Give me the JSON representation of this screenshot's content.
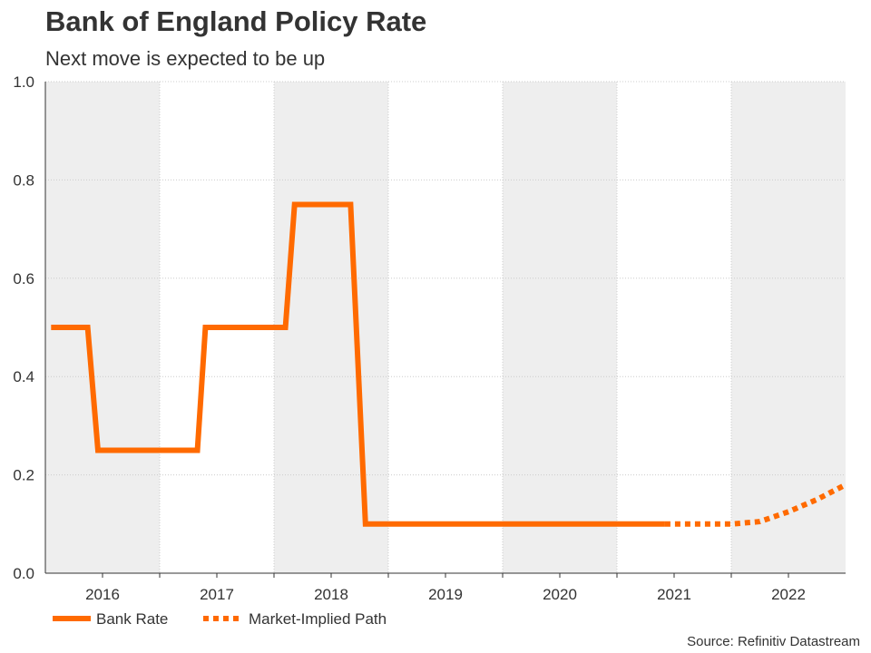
{
  "title": "Bank of England Policy Rate",
  "subtitle": "Next move is expected to be up",
  "source": "Source: Refinitiv Datastream",
  "colors": {
    "line": "#ff6a00",
    "band": "#eeeeee",
    "grid": "#cccccc",
    "axis": "#333333"
  },
  "chart_data": {
    "type": "line",
    "title": "Bank of England Policy Rate",
    "subtitle": "Next move is expected to be up",
    "xlabel": "",
    "ylabel": "",
    "xlim": [
      2015.5,
      2022.5
    ],
    "ylim": [
      0,
      1.0
    ],
    "yticks": [
      0.0,
      0.2,
      0.4,
      0.6,
      0.8,
      1.0
    ],
    "ytick_labels": [
      "0.0",
      "0.2",
      "0.4",
      "0.6",
      "0.8",
      "1.0"
    ],
    "xticks": [
      2016,
      2017,
      2018,
      2019,
      2020,
      2021,
      2022
    ],
    "xtick_labels": [
      "2016",
      "2017",
      "2018",
      "2019",
      "2020",
      "2021",
      "2022"
    ],
    "shaded_years": [
      2016,
      2018,
      2020,
      2022
    ],
    "grid": true,
    "legend_position": "bottom-left",
    "series": [
      {
        "name": "Bank Rate",
        "style": "solid",
        "x": [
          2015.55,
          2015.87,
          2015.96,
          2016.83,
          2016.9,
          2017.6,
          2017.68,
          2018.17,
          2018.3,
          2019.91,
          2020.01,
          2020.92
        ],
        "y": [
          0.5,
          0.5,
          0.25,
          0.25,
          0.5,
          0.5,
          0.75,
          0.75,
          0.1,
          0.1,
          0.1,
          0.1
        ]
      },
      {
        "name": "Market-Implied Path",
        "style": "dotted",
        "x": [
          2020.92,
          2021.2,
          2021.5,
          2021.75,
          2022.0,
          2022.25,
          2022.5
        ],
        "y": [
          0.1,
          0.1,
          0.1,
          0.105,
          0.125,
          0.15,
          0.18
        ]
      }
    ]
  }
}
